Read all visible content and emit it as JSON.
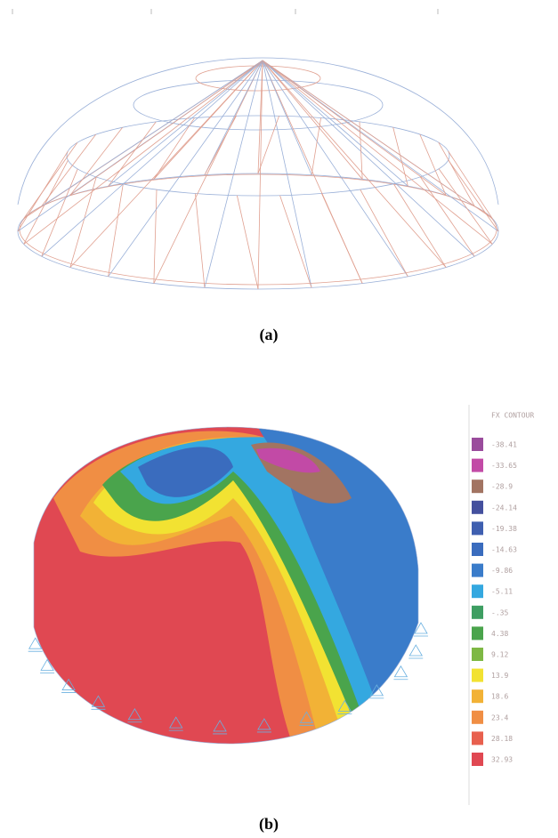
{
  "figure": {
    "panel_a": {
      "caption": "(a)"
    },
    "panel_b": {
      "caption": "(b)",
      "legend": {
        "title": "FX CONTOUR",
        "entries": [
          {
            "label": "-38.41",
            "color": "#9a4c9c"
          },
          {
            "label": "-33.65",
            "color": "#c24aa6"
          },
          {
            "label": "-28.9",
            "color": "#a27462"
          },
          {
            "label": "-24.14",
            "color": "#44509e"
          },
          {
            "label": "-19.38",
            "color": "#3f5fb0"
          },
          {
            "label": "-14.63",
            "color": "#3a6cbe"
          },
          {
            "label": "-9.86",
            "color": "#3a7cca"
          },
          {
            "label": "-5.11",
            "color": "#34a8e0"
          },
          {
            "label": "-.35",
            "color": "#3e9e62"
          },
          {
            "label": "4.38",
            "color": "#4aa44c"
          },
          {
            "label": "9.12",
            "color": "#7eb844"
          },
          {
            "label": "13.9",
            "color": "#f2e232"
          },
          {
            "label": "18.6",
            "color": "#f2b236"
          },
          {
            "label": "23.4",
            "color": "#f08e44"
          },
          {
            "label": "28.18",
            "color": "#e8604e"
          },
          {
            "label": "32.93",
            "color": "#e04852"
          }
        ]
      }
    }
  }
}
